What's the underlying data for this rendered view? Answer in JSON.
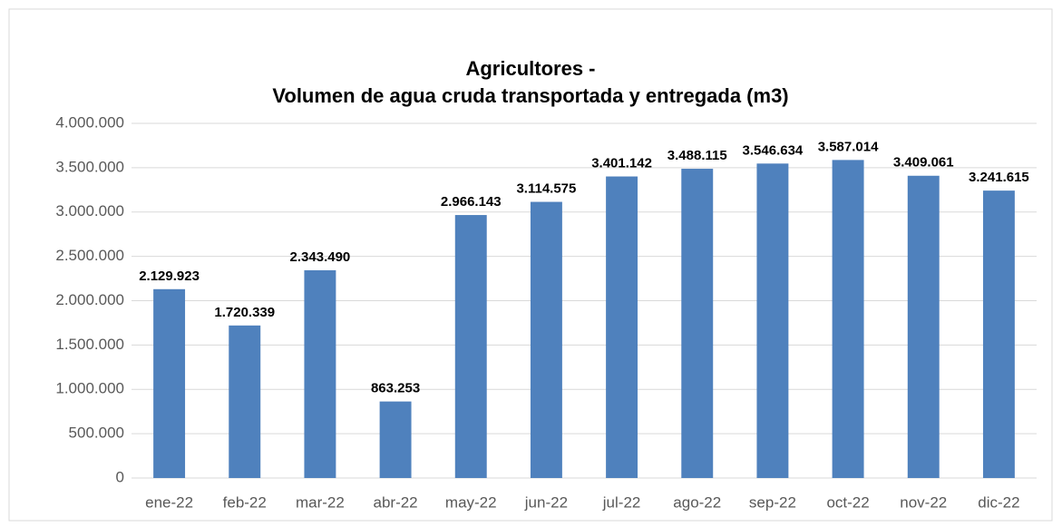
{
  "chart_data": {
    "type": "bar",
    "title": [
      "Agricultores -",
      "Volumen de agua cruda transportada y entregada (m3)"
    ],
    "categories": [
      "ene-22",
      "feb-22",
      "mar-22",
      "abr-22",
      "may-22",
      "jun-22",
      "jul-22",
      "ago-22",
      "sep-22",
      "oct-22",
      "nov-22",
      "dic-22"
    ],
    "values": [
      2129923,
      1720339,
      2343490,
      863253,
      2966143,
      3114575,
      3401142,
      3488115,
      3546634,
      3587014,
      3409061,
      3241615
    ],
    "value_labels": [
      "2.129.923",
      "1.720.339",
      "2.343.490",
      "863.253",
      "2.966.143",
      "3.114.575",
      "3.401.142",
      "3.488.115",
      "3.546.634",
      "3.587.014",
      "3.409.061",
      "3.241.615"
    ],
    "color": "#4f81bd",
    "ylim": [
      0,
      4000000
    ],
    "yticks": [
      0,
      {
        "value": 500000,
        "label": "500.000"
      },
      {
        "value": 1000000,
        "label": "1.000.000"
      },
      {
        "value": 1500000,
        "label": "1.500.000"
      },
      {
        "value": 2000000,
        "label": "2.000.000"
      },
      {
        "value": 2500000,
        "label": "2.500.000"
      },
      {
        "value": 3000000,
        "label": "3.000.000"
      },
      {
        "value": 3500000,
        "label": "3.500.000"
      },
      {
        "value": 4000000,
        "label": "4.000.000"
      }
    ],
    "grid": true
  }
}
